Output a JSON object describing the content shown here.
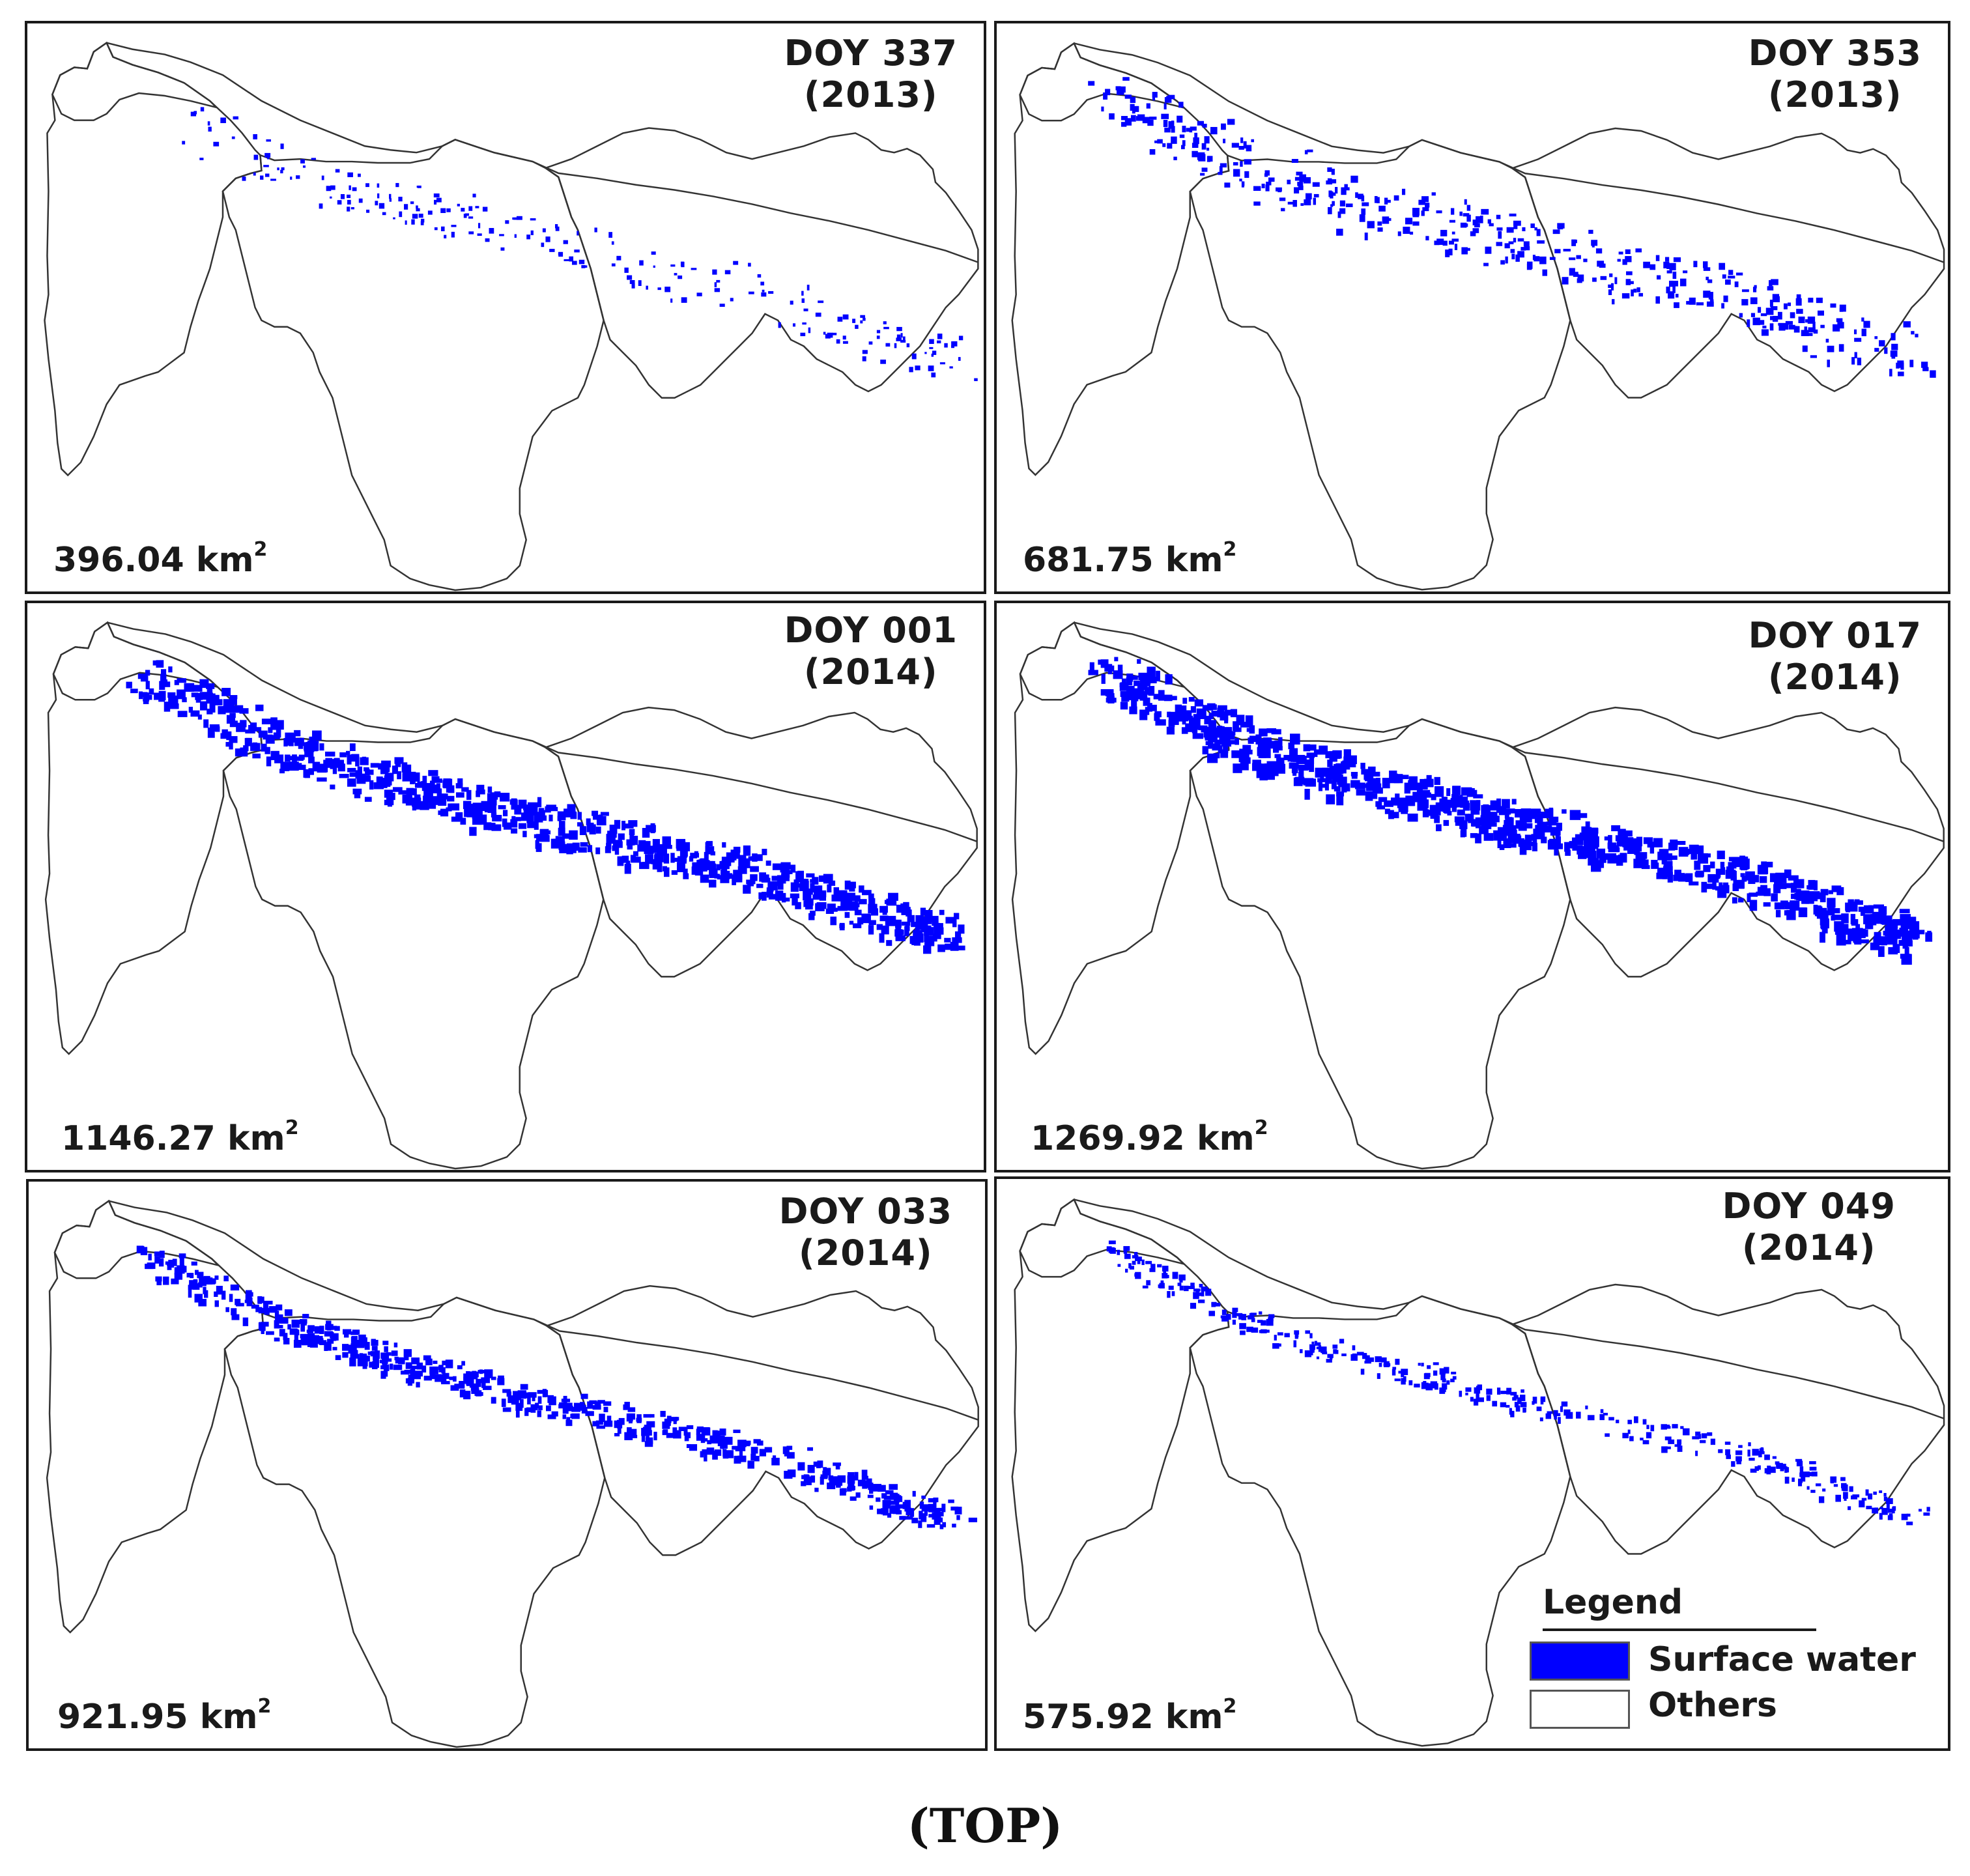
{
  "figure": {
    "caption": "(TOP)",
    "colors": {
      "surface_water": "#0000ff",
      "others": "#ffffff",
      "boundary": "#333333"
    }
  },
  "panels": [
    {
      "doy_line": "DOY 337",
      "year_line": "(2013)",
      "area_value": "396.04 km",
      "area_exp": "2",
      "water_pattern": "scattered-early"
    },
    {
      "doy_line": "DOY 353",
      "year_line": "(2013)",
      "area_value": "681.75 km",
      "area_exp": "2",
      "water_pattern": "expanding"
    },
    {
      "doy_line": "DOY 001",
      "year_line": "(2014)",
      "area_value": "1146.27 km",
      "area_exp": "2",
      "water_pattern": "extensive"
    },
    {
      "doy_line": "DOY 017",
      "year_line": "(2014)",
      "area_value": "1269.92 km",
      "area_exp": "2",
      "water_pattern": "peak"
    },
    {
      "doy_line": "DOY 033",
      "year_line": "(2014)",
      "area_value": "921.95 km",
      "area_exp": "2",
      "water_pattern": "receding"
    },
    {
      "doy_line": "DOY 049",
      "year_line": "(2014)",
      "area_value": "575.92 km",
      "area_exp": "2",
      "water_pattern": "late-receding"
    }
  ],
  "legend": {
    "title": "Legend",
    "items": [
      {
        "label": "Surface water",
        "icon": "filled-blue-swatch"
      },
      {
        "label": "Others",
        "icon": "empty-white-swatch"
      }
    ]
  }
}
